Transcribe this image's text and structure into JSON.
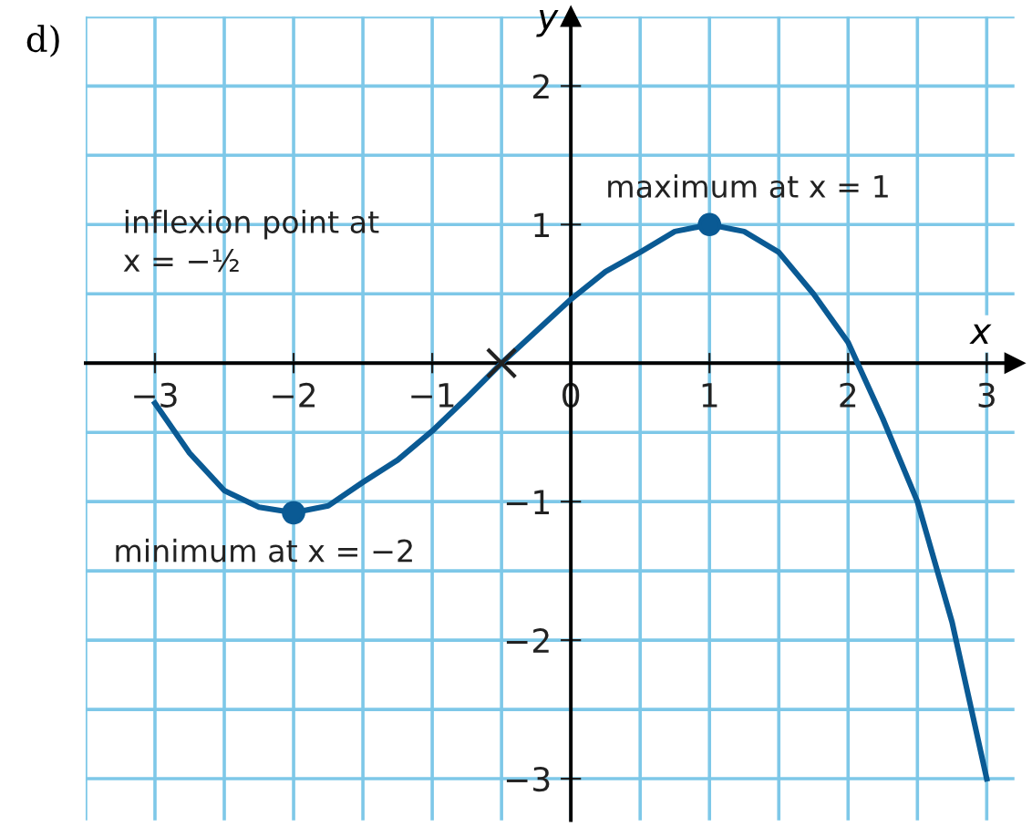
{
  "chart_data": {
    "type": "line",
    "title": "d)",
    "xlabel": "x",
    "ylabel": "y",
    "xlim": [
      -3.5,
      3.2
    ],
    "ylim": [
      -3.3,
      2.5
    ],
    "xticks": [
      {
        "value": -3,
        "label": "−3"
      },
      {
        "value": -2,
        "label": "−2"
      },
      {
        "value": -1,
        "label": "−1"
      },
      0,
      1,
      2,
      3
    ],
    "yticks": [
      {
        "value": -3,
        "label": "−3"
      },
      {
        "value": -2,
        "label": "−2"
      },
      {
        "value": -1,
        "label": "−1"
      },
      1,
      2
    ],
    "grid": true,
    "line_style": "solid",
    "series": [
      {
        "color": "#0a5a94",
        "marker": "none",
        "x": [
          -3,
          -2.75,
          -2.5,
          -2.25,
          -2,
          -1.75,
          -1.5,
          -1.25,
          -1,
          -0.75,
          -0.5,
          -0.25,
          0,
          0.25,
          0.5,
          0.75,
          1,
          1.25,
          1.5,
          1.75,
          2,
          2.25,
          2.5,
          2.75,
          3
        ],
        "values": [
          -0.29,
          -0.65,
          -0.92,
          -1.04,
          -1.08,
          -1.03,
          -0.86,
          -0.7,
          -0.49,
          -0.25,
          0,
          0.23,
          0.46,
          0.66,
          0.8,
          0.95,
          1,
          0.95,
          0.8,
          0.5,
          0.15,
          -0.4,
          -1.0,
          -1.87,
          -3
        ]
      },
      {
        "type": "scatter",
        "color": "#0a5a94",
        "marker": "circle",
        "x": [
          1,
          -2
        ],
        "values": [
          1,
          -1.08
        ]
      },
      {
        "type": "scatter",
        "color": "#222222",
        "marker": "cross",
        "x": [
          -0.5
        ],
        "values": [
          0
        ]
      }
    ],
    "annotations": [
      {
        "text": "maximum at x = 1",
        "x": 1,
        "y": 1
      },
      {
        "text": "minimum at x = −2",
        "x": -2,
        "y": -1.08
      },
      "inflexion point at\nx = −½"
    ]
  }
}
